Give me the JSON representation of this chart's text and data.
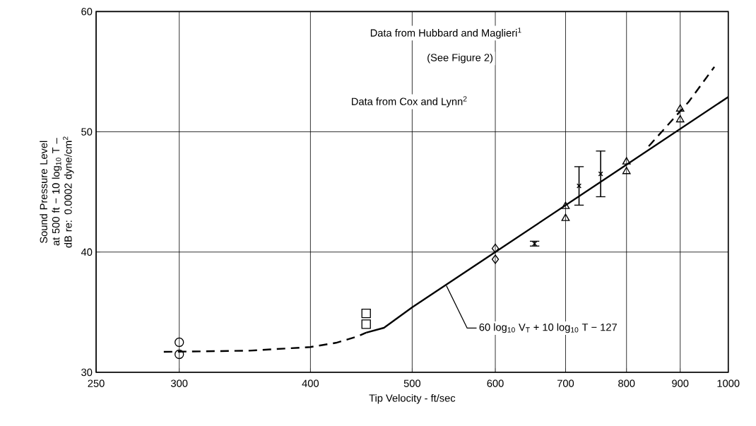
{
  "chart_data": {
    "type": "scatter",
    "xlabel": "Tip Velocity - ft/sec",
    "ylabel": "Sound Pressure Level at 500 ft − 10 log$_{10}$ T – dB re: 0.0002 dyne/cm$^{2}$",
    "log": "x",
    "xlim": [
      250,
      1000
    ],
    "ylim": [
      30,
      60
    ],
    "xticks": [
      250,
      300,
      400,
      500,
      600,
      700,
      800,
      900,
      1000
    ],
    "yticks": [
      30,
      40,
      50,
      60
    ],
    "grid": true,
    "series": [
      {
        "marker": "circle",
        "color": "#000000",
        "x": [
          300,
          300
        ],
        "values": [
          32.5,
          31.5
        ]
      },
      {
        "marker": "square",
        "color": "#000000",
        "x": [
          452,
          452
        ],
        "values": [
          34.9,
          34.0
        ]
      },
      {
        "marker": "diamond",
        "color": "#000000",
        "x": [
          600,
          600
        ],
        "values": [
          40.3,
          39.4
        ]
      },
      {
        "marker": "triangle",
        "color": "#000000",
        "x": [
          700,
          700,
          800,
          800,
          900,
          900
        ],
        "values": [
          43.8,
          42.8,
          47.5,
          46.7,
          51.9,
          51.0
        ]
      },
      {
        "marker": "cross",
        "color": "#000000",
        "x": [
          654,
          721,
          756
        ],
        "values": [
          40.7,
          45.5,
          46.5
        ],
        "errors": [
          [
            40.5,
            40.9
          ],
          [
            43.9,
            47.1
          ],
          [
            44.6,
            48.4
          ]
        ]
      },
      {
        "type": "line",
        "marker": "none",
        "line_style": "solid",
        "color": "#000000",
        "x": [
          452,
          470,
          500,
          600,
          1000
        ],
        "values": [
          33.3,
          33.7,
          35.4,
          40.0,
          52.9
        ]
      },
      {
        "type": "line",
        "marker": "none",
        "line_style": "dashed",
        "color": "#000000",
        "x": [
          290,
          350,
          400,
          423,
          444,
          452
        ],
        "values": [
          31.7,
          31.8,
          32.1,
          32.45,
          33.0,
          33.3
        ]
      },
      {
        "type": "line",
        "marker": "none",
        "line_style": "dashed",
        "color": "#000000",
        "x": [
          840,
          917,
          970
        ],
        "values": [
          48.8,
          52.5,
          55.4
        ]
      }
    ],
    "annotations": [
      "Data from Hubbard and Maglieri$^{1}$",
      "(See Figure 2)",
      "Data from Cox and Lynn$^{2}$",
      {
        "text": "60 log$_{10}$ V$_{T}$ + 10 log$_{10}$ T − 127",
        "x": 539,
        "y": 37.2
      }
    ]
  }
}
